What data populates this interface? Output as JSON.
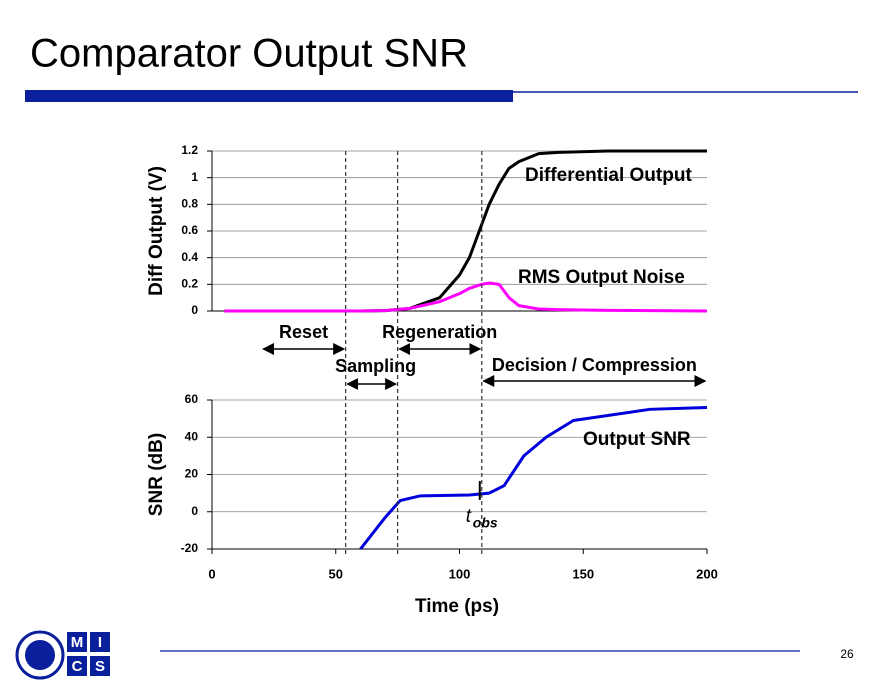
{
  "title": "Comparator Output SNR",
  "page_number": "26",
  "logo": {
    "letters": [
      "M",
      "I",
      "C",
      "S"
    ]
  },
  "x_label": "Time (ps)",
  "phases": [
    {
      "label": "Reset",
      "start": 20,
      "end": 54
    },
    {
      "label": "Sampling",
      "start": 54,
      "end": 75
    },
    {
      "label": "Regeneration",
      "start": 75,
      "end": 109
    },
    {
      "label": "Decision / Compression",
      "start": 109,
      "end": 200
    }
  ],
  "tobs": {
    "text": "t",
    "subscript": "obs",
    "x": 109
  },
  "chart_data": [
    {
      "type": "line",
      "ylabel": "Diff Output (V)",
      "xlim": [
        0,
        200
      ],
      "ylim": [
        0,
        1.2
      ],
      "yticks": [
        0,
        0.2,
        0.4,
        0.6,
        0.8,
        1,
        1.2
      ],
      "grid": true,
      "x": [
        5,
        60,
        70,
        80,
        92,
        100,
        104,
        109,
        112,
        116,
        120,
        124,
        132,
        140,
        160,
        200
      ],
      "series": [
        {
          "name": "Differential Output",
          "color": "#000000",
          "values": [
            0,
            0,
            0.003,
            0.02,
            0.1,
            0.27,
            0.4,
            0.65,
            0.8,
            0.95,
            1.07,
            1.12,
            1.18,
            1.19,
            1.2,
            1.2
          ]
        },
        {
          "name": "RMS Output Noise",
          "color": "#ff00ff",
          "values": [
            0,
            0,
            0.003,
            0.02,
            0.07,
            0.13,
            0.17,
            0.2,
            0.21,
            0.2,
            0.1,
            0.04,
            0.015,
            0.01,
            0.005,
            0
          ]
        }
      ]
    },
    {
      "type": "line",
      "ylabel": "SNR (dB)",
      "xlim": [
        0,
        200
      ],
      "ylim": [
        -20,
        60
      ],
      "xticks": [
        0,
        50,
        100,
        150,
        200
      ],
      "yticks": [
        -20,
        0,
        20,
        40,
        60
      ],
      "grid": true,
      "x": [
        60,
        70,
        76,
        84,
        104,
        112,
        118,
        126,
        135,
        146,
        177,
        200
      ],
      "series": [
        {
          "name": "Output SNR",
          "color": "#0000dd",
          "values": [
            -20,
            -3,
            6,
            8.5,
            9,
            10,
            14,
            30,
            40,
            49,
            55,
            56
          ]
        }
      ]
    }
  ]
}
